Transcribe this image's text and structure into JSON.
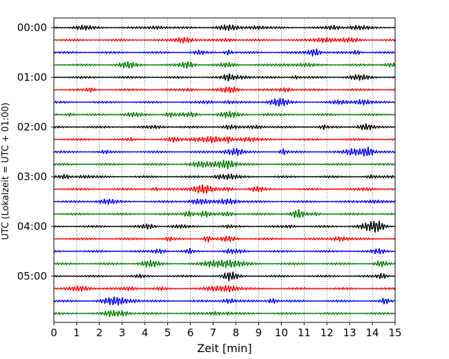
{
  "chart_data": {
    "type": "line",
    "subtype": "dayplot",
    "title": "",
    "xlabel": "Zeit  [min]",
    "ylabel": "UTC (Lokalzeit = UTC + 01:00)",
    "xlim": [
      0,
      15
    ],
    "x_ticks": [
      0,
      1,
      2,
      3,
      4,
      5,
      6,
      7,
      8,
      9,
      10,
      11,
      12,
      13,
      14,
      15
    ],
    "x_tick_labels": [
      "0",
      "1",
      "2",
      "3",
      "4",
      "5",
      "6",
      "7",
      "8",
      "9",
      "10",
      "11",
      "12",
      "13",
      "14",
      "15"
    ],
    "grid": "vertical dotted at each minute",
    "row_interval_minutes": 15,
    "row_colors": [
      "#000000",
      "#ff0000",
      "#0000ff",
      "#007f00"
    ],
    "rows": [
      {
        "start": "00:00",
        "label": "00:00",
        "color": "#000000"
      },
      {
        "start": "00:15",
        "label": "",
        "color": "#ff0000"
      },
      {
        "start": "00:30",
        "label": "",
        "color": "#0000ff"
      },
      {
        "start": "00:45",
        "label": "",
        "color": "#007f00"
      },
      {
        "start": "01:00",
        "label": "01:00",
        "color": "#000000"
      },
      {
        "start": "01:15",
        "label": "",
        "color": "#ff0000"
      },
      {
        "start": "01:30",
        "label": "",
        "color": "#0000ff"
      },
      {
        "start": "01:45",
        "label": "",
        "color": "#007f00"
      },
      {
        "start": "02:00",
        "label": "02:00",
        "color": "#000000"
      },
      {
        "start": "02:15",
        "label": "",
        "color": "#ff0000"
      },
      {
        "start": "02:30",
        "label": "",
        "color": "#0000ff"
      },
      {
        "start": "02:45",
        "label": "",
        "color": "#007f00"
      },
      {
        "start": "03:00",
        "label": "03:00",
        "color": "#000000"
      },
      {
        "start": "03:15",
        "label": "",
        "color": "#ff0000"
      },
      {
        "start": "03:30",
        "label": "",
        "color": "#0000ff"
      },
      {
        "start": "03:45",
        "label": "",
        "color": "#007f00"
      },
      {
        "start": "04:00",
        "label": "04:00",
        "color": "#000000"
      },
      {
        "start": "04:15",
        "label": "",
        "color": "#ff0000"
      },
      {
        "start": "04:30",
        "label": "",
        "color": "#0000ff"
      },
      {
        "start": "04:45",
        "label": "",
        "color": "#007f00"
      },
      {
        "start": "05:00",
        "label": "05:00",
        "color": "#000000"
      },
      {
        "start": "05:15",
        "label": "",
        "color": "#ff0000"
      },
      {
        "start": "05:30",
        "label": "",
        "color": "#0000ff"
      },
      {
        "start": "05:45",
        "label": "",
        "color": "#007f00"
      }
    ]
  }
}
